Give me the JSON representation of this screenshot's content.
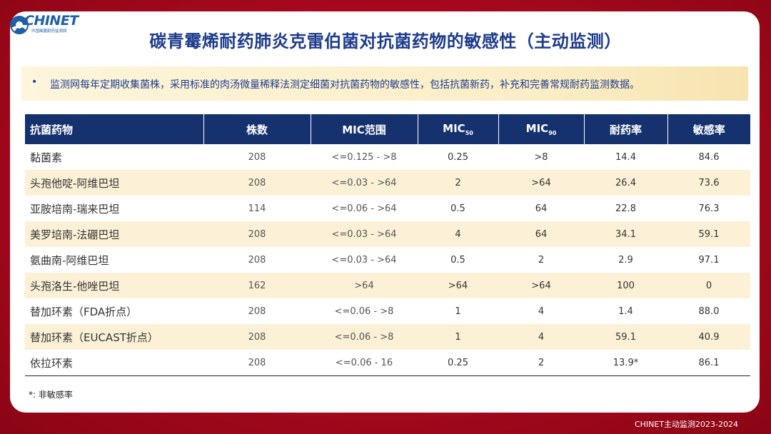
{
  "logo": {
    "brand": "CHINET",
    "subtitle": "中国细菌耐药监测网"
  },
  "title": "碳青霉烯耐药肺炎克雷伯菌对抗菌药物的敏感性（主动监测）",
  "banner": {
    "bullet": "•",
    "text": "监测网每年定期收集菌株，采用标准的肉汤微量稀释法测定细菌对抗菌药物的敏感性，包括抗菌新药，补充和完善常规耐药监测数据。"
  },
  "table": {
    "headers": {
      "drug": "抗菌药物",
      "count": "株数",
      "range": "MIC范围",
      "mic50": "MIC",
      "mic50_sub": "50",
      "mic90": "MIC",
      "mic90_sub": "90",
      "resistant": "耐药率",
      "susceptible": "敏感率"
    },
    "rows": [
      {
        "drug": "黏菌素",
        "count": "208",
        "range": "<=0.125 - >8",
        "mic50": "0.25",
        "mic90": ">8",
        "resistant": "14.4",
        "susceptible": "84.6"
      },
      {
        "drug": "头孢他啶-阿维巴坦",
        "count": "208",
        "range": "<=0.03 - >64",
        "mic50": "2",
        "mic90": ">64",
        "resistant": "26.4",
        "susceptible": "73.6"
      },
      {
        "drug": "亚胺培南-瑞来巴坦",
        "count": "114",
        "range": "<=0.06 - >64",
        "mic50": "0.5",
        "mic90": "64",
        "resistant": "22.8",
        "susceptible": "76.3"
      },
      {
        "drug": "美罗培南-法硼巴坦",
        "count": "208",
        "range": "<=0.03 - >64",
        "mic50": "4",
        "mic90": "64",
        "resistant": "34.1",
        "susceptible": "59.1"
      },
      {
        "drug": "氨曲南-阿维巴坦",
        "count": "208",
        "range": "<=0.03 - >64",
        "mic50": "0.5",
        "mic90": "2",
        "resistant": "2.9",
        "susceptible": "97.1"
      },
      {
        "drug": "头孢洛生-他唑巴坦",
        "count": "162",
        "range": ">64",
        "mic50": ">64",
        "mic90": ">64",
        "resistant": "100",
        "susceptible": "0"
      },
      {
        "drug": "替加环素（FDA折点）",
        "count": "208",
        "range": "<=0.06 - >8",
        "mic50": "1",
        "mic90": "4",
        "resistant": "1.4",
        "susceptible": "88.0"
      },
      {
        "drug": "替加环素（EUCAST折点）",
        "count": "208",
        "range": "<=0.06 - >8",
        "mic50": "1",
        "mic90": "4",
        "resistant": "59.1",
        "susceptible": "40.9"
      },
      {
        "drug": "依拉环素",
        "count": "208",
        "range": "<=0.06 - 16",
        "mic50": "0.25",
        "mic90": "2",
        "resistant": "13.9*",
        "susceptible": "86.1"
      }
    ]
  },
  "footnote": "*: 非敏感率",
  "footer": "CHINET主动监测2023-2024",
  "colors": {
    "header_bg": "#15326f",
    "title": "#1e3c8c",
    "alt_row": "#fcf1d6",
    "background": "#b00c22"
  }
}
